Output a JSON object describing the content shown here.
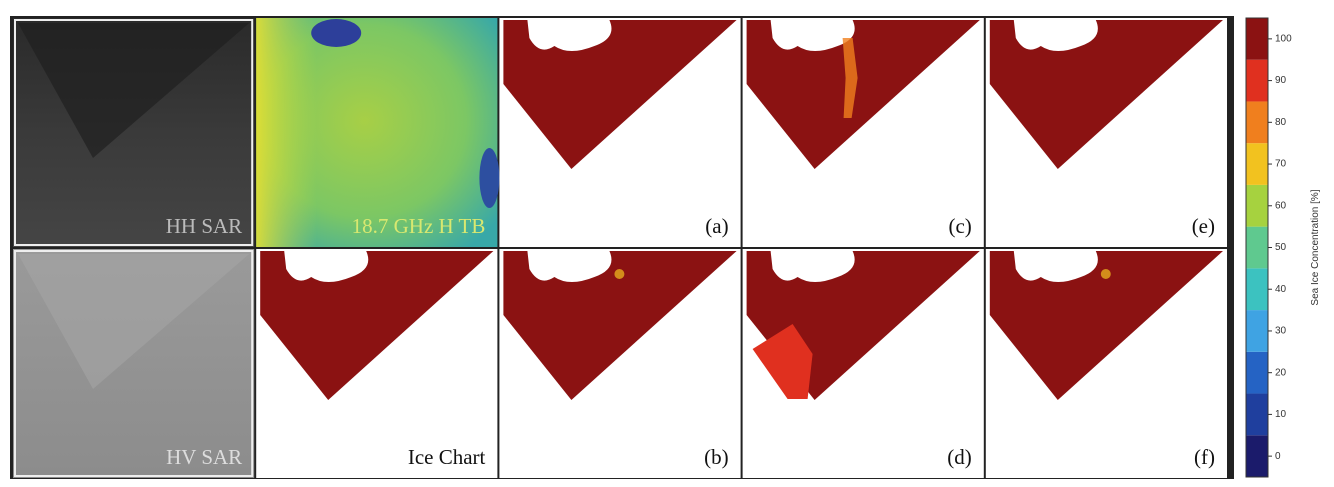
{
  "panels": [
    {
      "label": "HH SAR"
    },
    {
      "label": "18.7 GHz H TB"
    },
    {
      "label": "(a)"
    },
    {
      "label": "(c)"
    },
    {
      "label": "(e)"
    },
    {
      "label": "HV SAR"
    },
    {
      "label": "Ice Chart"
    },
    {
      "label": "(b)"
    },
    {
      "label": "(d)"
    },
    {
      "label": "(f)"
    }
  ],
  "colorbar": {
    "label": "Sea Ice Concentration [%]",
    "lim": [
      -5,
      105
    ],
    "ticks": [
      0,
      10,
      20,
      30,
      40,
      50,
      60,
      70,
      80,
      90,
      100
    ],
    "colors": [
      "#1b1b6b",
      "#1f3f9e",
      "#2563c4",
      "#3fa3e3",
      "#3cc2c0",
      "#5fc98f",
      "#a6d23f",
      "#f2c21f",
      "#f07f1e",
      "#e0301f",
      "#8b1212"
    ]
  }
}
